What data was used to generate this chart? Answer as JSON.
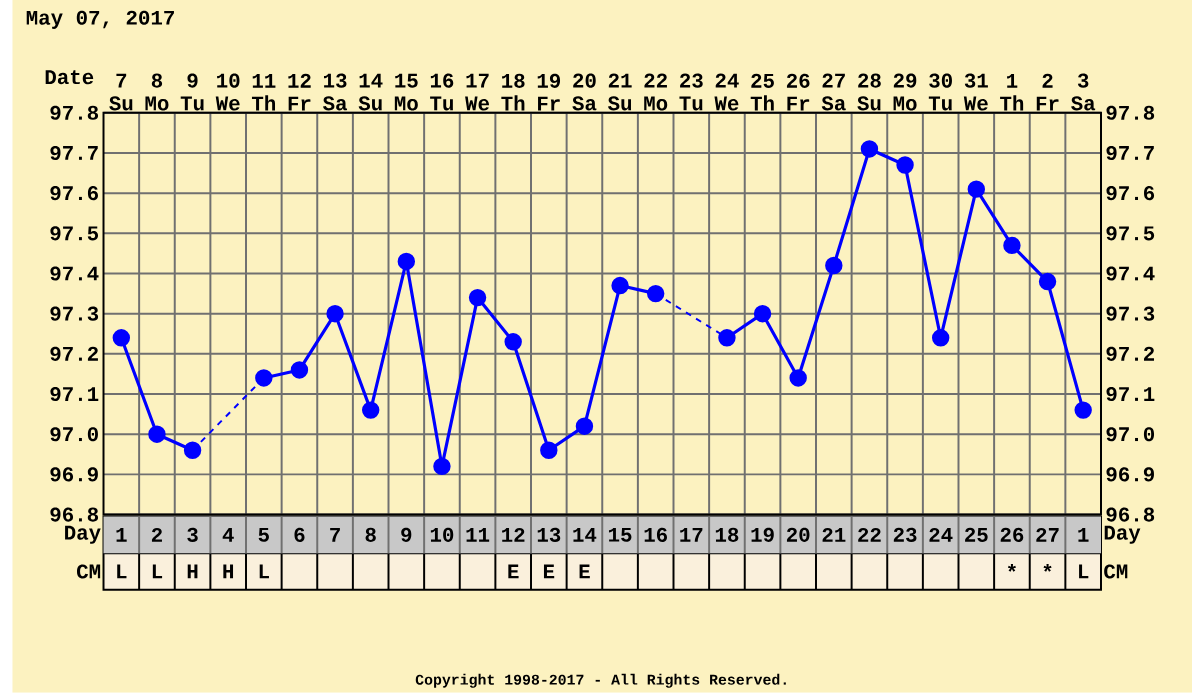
{
  "chart_data": [
    {
      "type": "line",
      "title": "May 07, 2017",
      "xlabel": "Date",
      "categories": [
        "7 Su",
        "8 Mo",
        "9 Tu",
        "10 We",
        "11 Th",
        "12 Fr",
        "13 Sa",
        "14 Su",
        "15 Mo",
        "16 Tu",
        "17 We",
        "18 Th",
        "19 Fr",
        "20 Sa",
        "21 Su",
        "22 Mo",
        "23 Tu",
        "24 We",
        "25 Th",
        "26 Fr",
        "27 Sa",
        "28 Su",
        "29 Mo",
        "30 Tu",
        "31 We",
        "1 Th",
        "2 Fr",
        "3 Sa"
      ],
      "series": [
        {
          "color": "#0000ff",
          "values": [
            97.24,
            97.0,
            96.96,
            null,
            97.14,
            97.16,
            97.3,
            97.06,
            97.43,
            96.92,
            97.34,
            97.23,
            96.96,
            97.02,
            97.37,
            97.35,
            null,
            97.24,
            97.3,
            97.14,
            97.42,
            97.71,
            97.67,
            97.24,
            97.61,
            97.47,
            97.38,
            97.06
          ]
        }
      ],
      "ylim": [
        96.8,
        97.8
      ],
      "yticks": [
        96.8,
        96.9,
        {
          "value": 97.0,
          "label": "97.0"
        },
        97.1,
        97.2,
        97.3,
        97.4,
        97.5,
        97.6,
        97.7,
        97.8
      ],
      "y2lim": [
        96.8,
        97.8
      ],
      "y2ticks": [
        96.8,
        96.9,
        {
          "value": 97.0,
          "label": "97.0"
        },
        97.1,
        97.2,
        97.3,
        97.4,
        97.5,
        97.6,
        97.7,
        97.8
      ],
      "grid": true,
      "marker": "circle",
      "line_style": "solid",
      "annotations": [
        "Copyright 1998-2017 - All Rights Reserved."
      ]
    },
    {
      "type": "heatmap",
      "tick_labels": "y",
      "grid": true,
      "categories": [
        null,
        null,
        null,
        null,
        null,
        null,
        null,
        null,
        null,
        null,
        null,
        null,
        null,
        null,
        null,
        null,
        null,
        null,
        null,
        null,
        null,
        null,
        null,
        null,
        null,
        null,
        null,
        null
      ],
      "y_categories": [
        "Day",
        "CM"
      ],
      "y2_categories": [
        "Day",
        "CM"
      ],
      "cells": [
        [
          null,
          null,
          null,
          null,
          null,
          null,
          null,
          null,
          null,
          null,
          null,
          null,
          null,
          null,
          null,
          null,
          null,
          null,
          null,
          null,
          null,
          null,
          null,
          null,
          null,
          null,
          null,
          null
        ],
        [
          null,
          null,
          null,
          null,
          null,
          null,
          null,
          null,
          null,
          null,
          null,
          null,
          null,
          null,
          null,
          null,
          null,
          null,
          null,
          null,
          null,
          null,
          null,
          null,
          null,
          null,
          null,
          null
        ]
      ],
      "cell_labels": [
        [
          "1",
          "2",
          "3",
          "4",
          "5",
          "6",
          "7",
          "8",
          "9",
          "10",
          "11",
          "12",
          "13",
          "14",
          "15",
          "16",
          "17",
          "18",
          "19",
          "20",
          "21",
          "22",
          "23",
          "24",
          "25",
          "26",
          "27",
          "1"
        ],
        [
          "L",
          "L",
          "H",
          "H",
          "L",
          null,
          null,
          null,
          null,
          null,
          null,
          "E",
          "E",
          "E",
          null,
          null,
          null,
          null,
          null,
          null,
          null,
          null,
          null,
          null,
          null,
          "*",
          "*",
          "L"
        ]
      ]
    }
  ]
}
